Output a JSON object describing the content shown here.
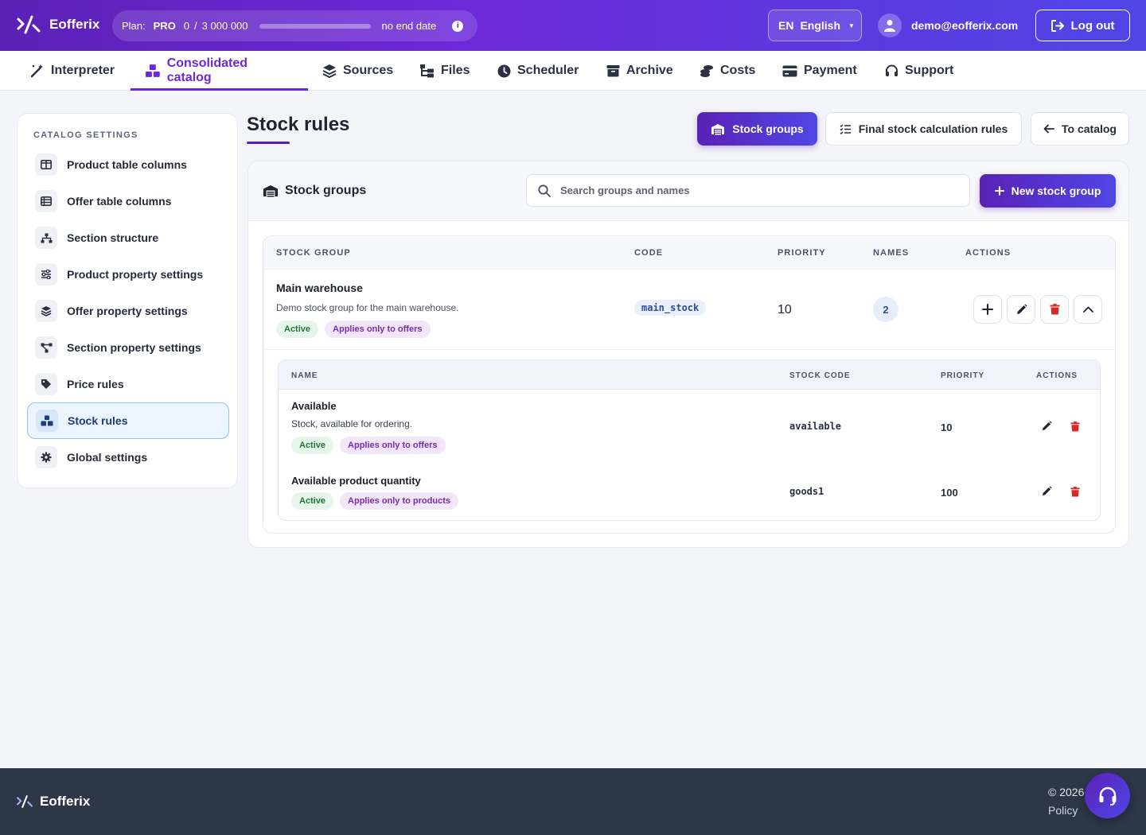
{
  "header": {
    "brand": "Eofferix",
    "plan_label": "Plan:",
    "plan_name": "PRO",
    "usage_used": "0",
    "usage_sep": "/",
    "usage_total": "3 000 000",
    "usage_fraction": 0,
    "end_date": "no end date",
    "lang_code": "EN",
    "lang_name": "English",
    "user_email": "demo@eofferix.com",
    "logout_label": "Log out"
  },
  "nav": {
    "items": [
      {
        "label": "Interpreter",
        "icon": "magic-wand-icon"
      },
      {
        "label": "Consolidated catalog",
        "icon": "boxes-icon",
        "active": true
      },
      {
        "label": "Sources",
        "icon": "layers-icon"
      },
      {
        "label": "Files",
        "icon": "folder-tree-icon"
      },
      {
        "label": "Scheduler",
        "icon": "clock-icon"
      },
      {
        "label": "Archive",
        "icon": "archive-icon"
      },
      {
        "label": "Costs",
        "icon": "coins-icon"
      },
      {
        "label": "Payment",
        "icon": "credit-card-icon"
      },
      {
        "label": "Support",
        "icon": "headset-icon"
      }
    ]
  },
  "sidebar": {
    "title": "CATALOG SETTINGS",
    "items": [
      {
        "label": "Product table columns",
        "icon": "columns-icon"
      },
      {
        "label": "Offer table columns",
        "icon": "table-list-icon"
      },
      {
        "label": "Section structure",
        "icon": "sitemap-icon"
      },
      {
        "label": "Product property settings",
        "icon": "sliders-icon"
      },
      {
        "label": "Offer property settings",
        "icon": "layer-group-icon"
      },
      {
        "label": "Section property settings",
        "icon": "diagram-icon"
      },
      {
        "label": "Price rules",
        "icon": "tags-icon"
      },
      {
        "label": "Stock rules",
        "icon": "boxes-icon",
        "active": true
      },
      {
        "label": "Global settings",
        "icon": "gear-icon"
      }
    ]
  },
  "page": {
    "title": "Stock rules",
    "btn_stock_groups": "Stock groups",
    "btn_final_rules": "Final stock calculation rules",
    "btn_to_catalog": "To catalog"
  },
  "card": {
    "title": "Stock groups",
    "search_placeholder": "Search groups and names",
    "new_button": "New stock group",
    "columns": {
      "group": "STOCK GROUP",
      "code": "CODE",
      "priority": "PRIORITY",
      "names": "NAMES",
      "actions": "ACTIONS"
    },
    "group": {
      "name": "Main warehouse",
      "description": "Demo stock group for the main warehouse.",
      "badge_status": "Active",
      "badge_scope": "Applies only to offers",
      "code": "main_stock",
      "priority": "10",
      "names_count": "2"
    },
    "sub_columns": {
      "name": "NAME",
      "stock_code": "STOCK CODE",
      "priority": "PRIORITY",
      "actions": "ACTIONS"
    },
    "names": [
      {
        "name": "Available",
        "description": "Stock, available for ordering.",
        "badge_status": "Active",
        "badge_scope": "Applies only to offers",
        "code": "available",
        "priority": "10"
      },
      {
        "name": "Available product quantity",
        "badge_status": "Active",
        "badge_scope": "Applies only to products",
        "code": "goods1",
        "priority": "100"
      }
    ]
  },
  "footer": {
    "brand": "Eofferix",
    "copyright": "© 2026",
    "policy": "Policy"
  },
  "colors": {
    "accent": "#5b21b6",
    "accent2": "#4f46e5",
    "danger": "#dc2626",
    "footer_bg": "#2d3748"
  }
}
